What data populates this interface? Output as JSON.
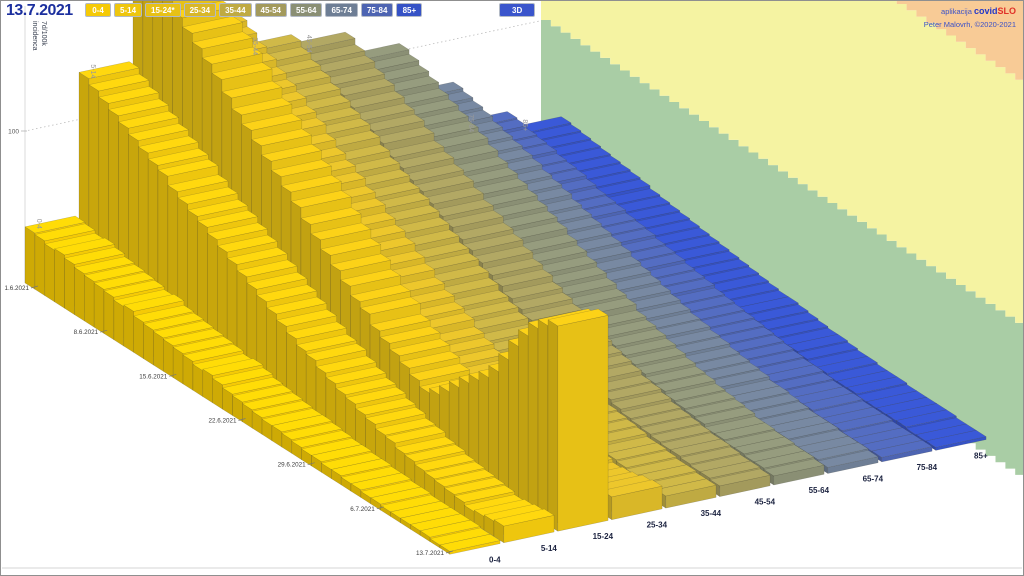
{
  "header": {
    "date_display": "13.7.2021",
    "view_button": "3D",
    "credits": {
      "app_prefix": "aplikacija ",
      "app_name_1": "covid",
      "app_name_2": "SLO",
      "line2": "Peter Malovrh, ©2020-2021"
    }
  },
  "y_axis": {
    "unit_line1": "7d/100k",
    "unit_line2": "incidenca",
    "tick_label": "100",
    "tick_value": 100
  },
  "colors": {
    "accent_blue": "#2438c8",
    "accent_red": "#e03028",
    "date_navy": "#1b2f9e",
    "grid": "#bdbdbd",
    "axis_text": "#3c3c3c",
    "front_label": "#1c2340",
    "back_label": "#9a9a9a"
  },
  "chart_data": {
    "type": "bar",
    "title": "",
    "ylabel": "7d/100k incidenca",
    "y_tick": 100,
    "ylim": [
      0,
      210
    ],
    "date_start": "1.6.2021",
    "date_end": "13.7.2021",
    "days": 43,
    "date_ticks": [
      {
        "label": "1.6.2021",
        "day": 0
      },
      {
        "label": "8.6.2021",
        "day": 7
      },
      {
        "label": "15.6.2021",
        "day": 14
      },
      {
        "label": "22.6.2021",
        "day": 21
      },
      {
        "label": "29.6.2021",
        "day": 28
      },
      {
        "label": "6.7.2021",
        "day": 35
      },
      {
        "label": "13.7.2021",
        "day": 42
      }
    ],
    "legend_position": "top",
    "grid": "dotted-100-line",
    "background_bands": [
      {
        "name": "green",
        "color": "#a9cda5",
        "from": 0,
        "to": 100
      },
      {
        "name": "yellow",
        "color": "#f5f3a2",
        "from": 100,
        "to": 260
      },
      {
        "name": "orange",
        "color": "#f8cb96",
        "from": 260,
        "to": 560
      }
    ],
    "series": [
      {
        "label": "0-4",
        "legend_label": "0-4",
        "color": "#f5ca06",
        "back_label": true,
        "values": [
          37,
          36,
          34,
          35,
          33,
          31,
          30,
          29,
          28,
          26,
          27,
          24,
          23,
          22,
          21,
          20,
          19,
          17,
          18,
          16,
          14,
          13,
          12,
          11,
          10,
          10,
          9,
          8,
          7,
          7,
          6,
          6,
          5,
          5,
          4,
          4,
          3,
          3,
          3,
          3,
          3,
          2,
          2
        ]
      },
      {
        "label": "5-14",
        "legend_label": "5-14",
        "color": "#eec60e",
        "back_label": true,
        "values": [
          131,
          127,
          123,
          119,
          115,
          111,
          107,
          103,
          100,
          94,
          90,
          86,
          83,
          79,
          75,
          71,
          67,
          63,
          59,
          55,
          51,
          47,
          43,
          41,
          37,
          34,
          31,
          29,
          26,
          24,
          21,
          20,
          17,
          16,
          14,
          13,
          12,
          11,
          10,
          8,
          9,
          10,
          11
        ]
      },
      {
        "label": "15-24",
        "legend_label": "15-24*",
        "color": "#e7c116",
        "back_label": false,
        "values": [
          205,
          199,
          193,
          187,
          180,
          174,
          168,
          162,
          156,
          148,
          141,
          135,
          129,
          123,
          117,
          111,
          105,
          98,
          92,
          86,
          80,
          74,
          68,
          64,
          57,
          53,
          49,
          45,
          41,
          37,
          40,
          46,
          53,
          60,
          66,
          72,
          80,
          92,
          105,
          116,
          125,
          131,
          135
        ]
      },
      {
        "label": "25-34",
        "legend_label": "25-34",
        "color": "#d9b728",
        "back_label": false,
        "values": [
          147,
          143,
          138,
          134,
          129,
          125,
          121,
          116,
          112,
          106,
          101,
          97,
          93,
          88,
          84,
          79,
          75,
          71,
          66,
          62,
          57,
          53,
          49,
          46,
          41,
          38,
          35,
          32,
          29,
          26,
          24,
          22,
          19,
          18,
          16,
          15,
          13,
          12,
          10,
          11,
          12,
          14,
          15
        ]
      },
      {
        "label": "35-44",
        "legend_label": "35-44",
        "color": "#bfaa42",
        "back_label": true,
        "values": [
          126,
          122,
          118,
          115,
          111,
          107,
          103,
          100,
          96,
          91,
          87,
          83,
          79,
          76,
          72,
          68,
          64,
          60,
          57,
          53,
          49,
          45,
          42,
          39,
          35,
          33,
          30,
          28,
          25,
          23,
          20,
          19,
          16,
          15,
          14,
          13,
          11,
          11,
          10,
          9,
          9,
          8,
          8
        ]
      },
      {
        "label": "45-54",
        "legend_label": "45-54",
        "color": "#a39a5c",
        "back_label": true,
        "values": [
          120,
          116,
          113,
          109,
          106,
          102,
          98,
          95,
          91,
          86,
          83,
          79,
          76,
          72,
          68,
          65,
          61,
          58,
          54,
          50,
          47,
          43,
          40,
          37,
          34,
          31,
          29,
          26,
          24,
          22,
          19,
          18,
          16,
          14,
          13,
          12,
          11,
          10,
          10,
          9,
          8,
          8,
          7
        ]
      },
      {
        "label": "55-64",
        "legend_label": "55-64",
        "color": "#8a8f74",
        "back_label": false,
        "values": [
          105,
          102,
          99,
          96,
          92,
          89,
          86,
          83,
          80,
          76,
          72,
          69,
          66,
          63,
          60,
          57,
          54,
          50,
          47,
          44,
          41,
          38,
          35,
          33,
          29,
          27,
          25,
          23,
          21,
          19,
          17,
          16,
          14,
          13,
          12,
          11,
          9,
          9,
          8,
          8,
          7,
          7,
          6
        ]
      },
      {
        "label": "65-74",
        "legend_label": "65-74",
        "color": "#6e7e95",
        "back_label": false,
        "values": [
          72,
          70,
          68,
          66,
          63,
          61,
          59,
          57,
          55,
          52,
          50,
          48,
          45,
          43,
          41,
          39,
          37,
          35,
          32,
          30,
          28,
          26,
          24,
          22,
          20,
          19,
          17,
          16,
          14,
          13,
          12,
          11,
          9,
          9,
          8,
          7,
          6,
          6,
          6,
          5,
          5,
          5,
          4
        ]
      },
      {
        "label": "75-84",
        "legend_label": "75-84",
        "color": "#4d64b2",
        "back_label": true,
        "values": [
          45,
          44,
          42,
          41,
          40,
          38,
          37,
          36,
          34,
          32,
          31,
          30,
          28,
          27,
          26,
          24,
          23,
          22,
          20,
          19,
          18,
          16,
          15,
          14,
          13,
          12,
          11,
          10,
          9,
          8,
          7,
          7,
          6,
          5,
          5,
          5,
          4,
          4,
          4,
          3,
          3,
          3,
          3
        ]
      },
      {
        "label": "85+",
        "legend_label": "85+",
        "color": "#3552c6",
        "back_label": true,
        "values": [
          34,
          33,
          32,
          31,
          30,
          29,
          28,
          27,
          26,
          24,
          23,
          22,
          21,
          20,
          19,
          18,
          17,
          16,
          15,
          14,
          13,
          12,
          11,
          11,
          10,
          9,
          8,
          7,
          7,
          6,
          5,
          5,
          4,
          4,
          4,
          3,
          3,
          3,
          3,
          3,
          2,
          2,
          2
        ]
      }
    ]
  }
}
